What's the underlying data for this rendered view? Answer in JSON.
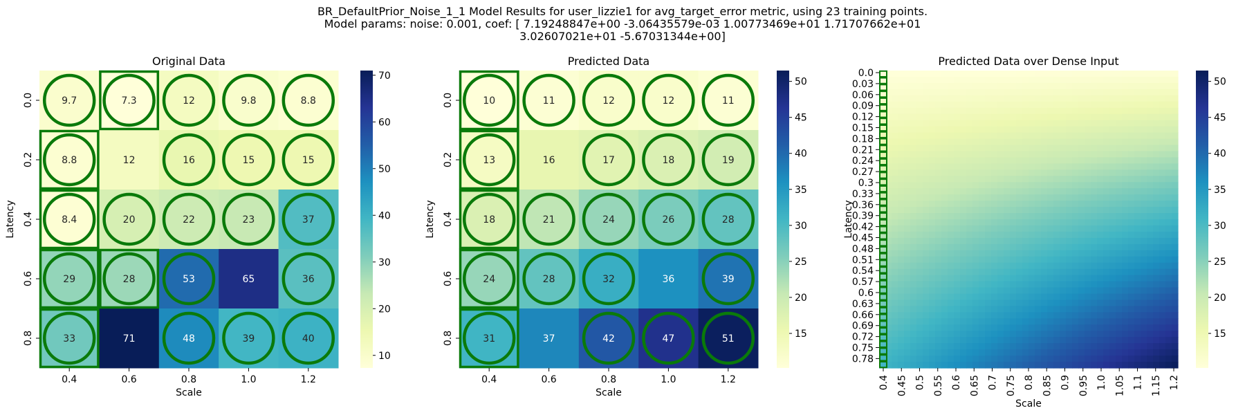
{
  "suptitle": {
    "line1": "BR_DefaultPrior_Noise_1_1 Model Results for user_lizzie1 for avg_target_error metric, using 23 training points.",
    "line2": "Model params: noise: 0.001, coef: [ 7.19248847e+00 -3.06435579e-03  1.00773469e+01  1.71707662e+01",
    "line3": "3.02607021e+01 -5.67031344e+00]"
  },
  "chart_data": [
    {
      "type": "heatmap",
      "title": "Original Data",
      "xlabel": "Scale",
      "ylabel": "Latency",
      "x_ticks": [
        "0.4",
        "0.6",
        "0.8",
        "1.0",
        "1.2"
      ],
      "y_ticks": [
        "0.0",
        "0.2",
        "0.4",
        "0.6",
        "0.8"
      ],
      "values": [
        [
          9.7,
          7.3,
          12,
          9.8,
          8.8
        ],
        [
          8.8,
          12,
          16,
          15,
          15
        ],
        [
          8.4,
          20,
          22,
          23,
          37
        ],
        [
          29,
          28,
          53,
          65,
          36
        ],
        [
          33,
          71,
          48,
          39,
          40
        ]
      ],
      "cell_labels": [
        [
          "9.7",
          "7.3",
          "12",
          "9.8",
          "8.8"
        ],
        [
          "8.8",
          "12",
          "16",
          "15",
          "15"
        ],
        [
          "8.4",
          "20",
          "22",
          "23",
          "37"
        ],
        [
          "29",
          "28",
          "53",
          "65",
          "36"
        ],
        [
          "33",
          "71",
          "48",
          "39",
          "40"
        ]
      ],
      "circled": [
        [
          true,
          true,
          true,
          true,
          true
        ],
        [
          true,
          false,
          true,
          true,
          true
        ],
        [
          true,
          true,
          true,
          true,
          true
        ],
        [
          true,
          true,
          true,
          false,
          true
        ],
        [
          true,
          false,
          true,
          true,
          true
        ]
      ],
      "boxed": [
        [
          false,
          true,
          false,
          false,
          false
        ],
        [
          true,
          false,
          false,
          false,
          false
        ],
        [
          true,
          false,
          false,
          false,
          false
        ],
        [
          true,
          true,
          false,
          false,
          false
        ],
        [
          true,
          false,
          false,
          false,
          false
        ]
      ],
      "colorbar": {
        "min": 7.3,
        "max": 71,
        "ticks": [
          10,
          20,
          30,
          40,
          50,
          60,
          70
        ]
      },
      "colormap": "YlGnBu",
      "marker_color": "#0a7a0a"
    },
    {
      "type": "heatmap",
      "title": "Predicted Data",
      "xlabel": "Scale",
      "ylabel": "Latency",
      "x_ticks": [
        "0.4",
        "0.6",
        "0.8",
        "1.0",
        "1.2"
      ],
      "y_ticks": [
        "0.0",
        "0.2",
        "0.4",
        "0.6",
        "0.8"
      ],
      "values": [
        [
          10,
          11,
          12,
          12,
          11
        ],
        [
          13,
          16,
          17,
          18,
          19
        ],
        [
          18,
          21,
          24,
          26,
          28
        ],
        [
          24,
          28,
          32,
          36,
          39
        ],
        [
          31,
          37,
          42,
          47,
          51
        ]
      ],
      "cell_labels": [
        [
          "10",
          "11",
          "12",
          "12",
          "11"
        ],
        [
          "13",
          "16",
          "17",
          "18",
          "19"
        ],
        [
          "18",
          "21",
          "24",
          "26",
          "28"
        ],
        [
          "24",
          "28",
          "32",
          "36",
          "39"
        ],
        [
          "31",
          "37",
          "42",
          "47",
          "51"
        ]
      ],
      "circled": [
        [
          true,
          true,
          true,
          true,
          true
        ],
        [
          true,
          false,
          true,
          true,
          true
        ],
        [
          true,
          true,
          true,
          true,
          true
        ],
        [
          true,
          true,
          true,
          false,
          true
        ],
        [
          true,
          false,
          true,
          true,
          true
        ]
      ],
      "boxed": [
        [
          true,
          false,
          false,
          false,
          false
        ],
        [
          true,
          false,
          false,
          false,
          false
        ],
        [
          true,
          false,
          false,
          false,
          false
        ],
        [
          true,
          false,
          false,
          false,
          false
        ],
        [
          true,
          false,
          false,
          false,
          false
        ]
      ],
      "colorbar": {
        "min": 10.2,
        "max": 51.5,
        "ticks": [
          15,
          20,
          25,
          30,
          35,
          40,
          45,
          50
        ]
      },
      "colormap": "YlGnBu",
      "marker_color": "#0a7a0a"
    },
    {
      "type": "heatmap",
      "title": "Predicted Data over Dense Input",
      "xlabel": "Scale",
      "ylabel": "Latency",
      "x_ticks": [
        "0.4",
        "0.45",
        "0.5",
        "0.55",
        "0.6",
        "0.65",
        "0.7",
        "0.75",
        "0.8",
        "0.85",
        "0.9",
        "0.95",
        "1.0",
        "1.05",
        "1.1",
        "1.15",
        "1.2"
      ],
      "y_ticks": [
        "0.0",
        "0.03",
        "0.06",
        "0.09",
        "0.12",
        "0.15",
        "0.18",
        "0.21",
        "0.24",
        "0.27",
        "0.3",
        "0.33",
        "0.36",
        "0.39",
        "0.42",
        "0.45",
        "0.48",
        "0.51",
        "0.54",
        "0.57",
        "0.6",
        "0.63",
        "0.66",
        "0.69",
        "0.72",
        "0.75",
        "0.78"
      ],
      "x_range": [
        0.4,
        1.2
      ],
      "y_range": [
        0.0,
        0.8
      ],
      "corner_values": {
        "top_left": 10.2,
        "top_right": 10.9,
        "bottom_left": 31,
        "bottom_right": 51
      },
      "colorbar": {
        "min": 10.2,
        "max": 51.5,
        "ticks": [
          15,
          20,
          25,
          30,
          35,
          40,
          45,
          50
        ]
      },
      "colormap": "YlGnBu",
      "marker_color": "#0a7a0a"
    }
  ]
}
